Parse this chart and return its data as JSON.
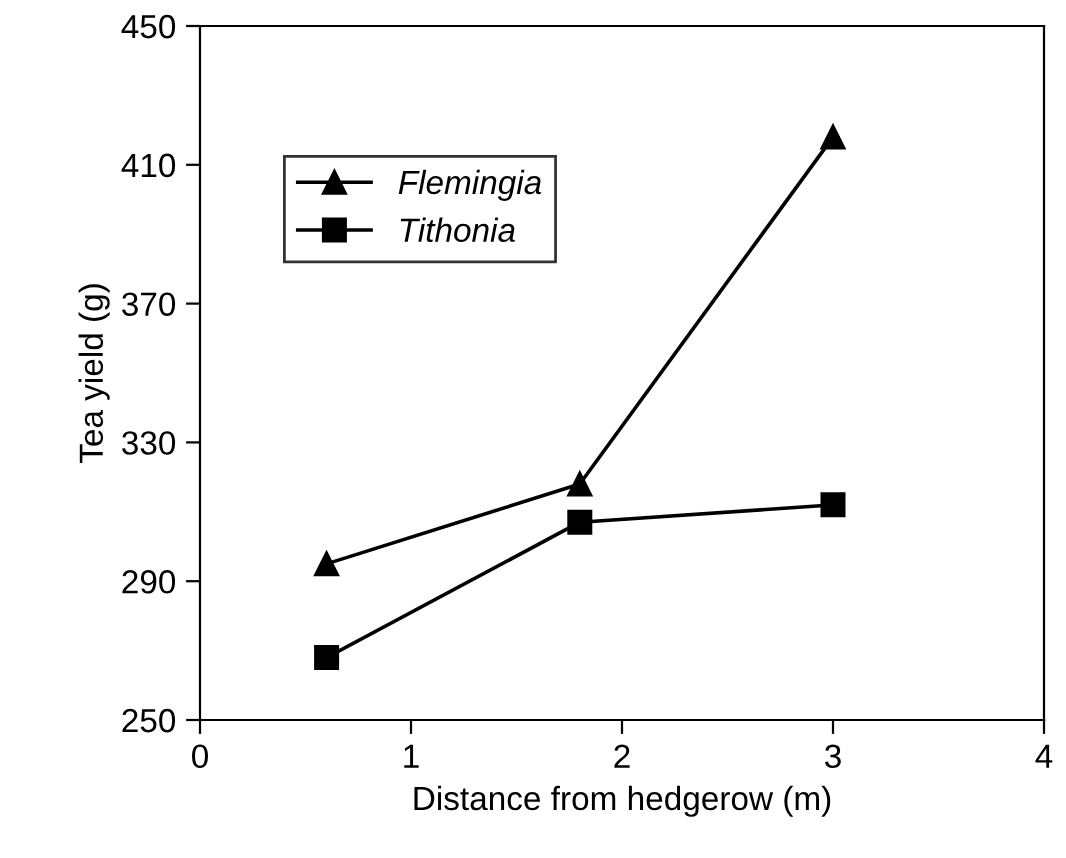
{
  "chart_data": {
    "type": "line",
    "xlabel": "Distance from hedgerow (m)",
    "ylabel": "Tea yield (g)",
    "x": [
      0.6,
      1.8,
      3.0
    ],
    "series": [
      {
        "name": "Flemingia",
        "color": "#000000",
        "marker": "triangle",
        "values": [
          295,
          318,
          418
        ]
      },
      {
        "name": "Tithonia",
        "color": "#000000",
        "marker": "square",
        "values": [
          268,
          307,
          312
        ]
      }
    ],
    "xlim": [
      0,
      4
    ],
    "xticks": [
      0,
      1,
      2,
      3,
      4
    ],
    "ylim": [
      250,
      450
    ],
    "yticks": [
      250,
      290,
      330,
      370,
      410,
      450
    ],
    "grid": false,
    "legend": "top left",
    "line_style": "solid"
  }
}
